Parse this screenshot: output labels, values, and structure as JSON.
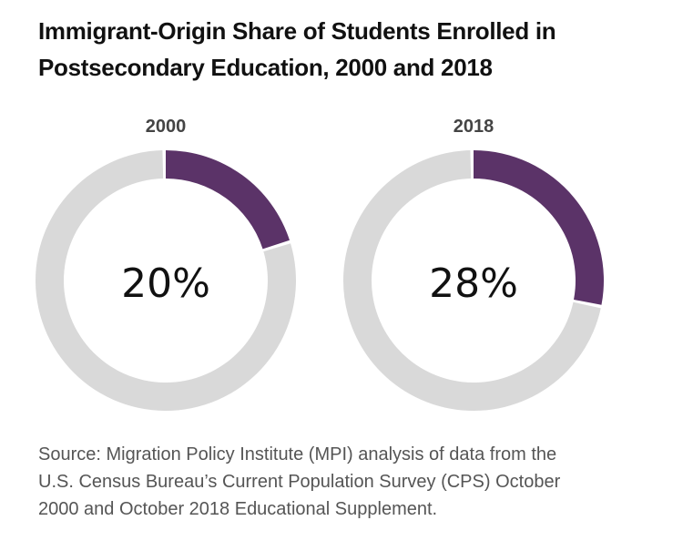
{
  "title_lines": [
    "Immigrant-Origin Share of Students Enrolled in",
    "Postsecondary Education, 2000 and 2018"
  ],
  "source_lines": [
    "Source: Migration Policy Institute (MPI) analysis of data from the",
    "U.S. Census Bureau’s Current Population Survey (CPS) October",
    "2000 and October 2018 Educational Supplement."
  ],
  "colors": {
    "highlight": "#5b3368",
    "remainder": "#d9d9d9",
    "label": "#444444"
  },
  "chart_data": [
    {
      "type": "pie",
      "style": "donut",
      "title": "2000",
      "value": 20,
      "unit": "%",
      "center_label": "20%"
    },
    {
      "type": "pie",
      "style": "donut",
      "title": "2018",
      "value": 28,
      "unit": "%",
      "center_label": "28%"
    }
  ]
}
